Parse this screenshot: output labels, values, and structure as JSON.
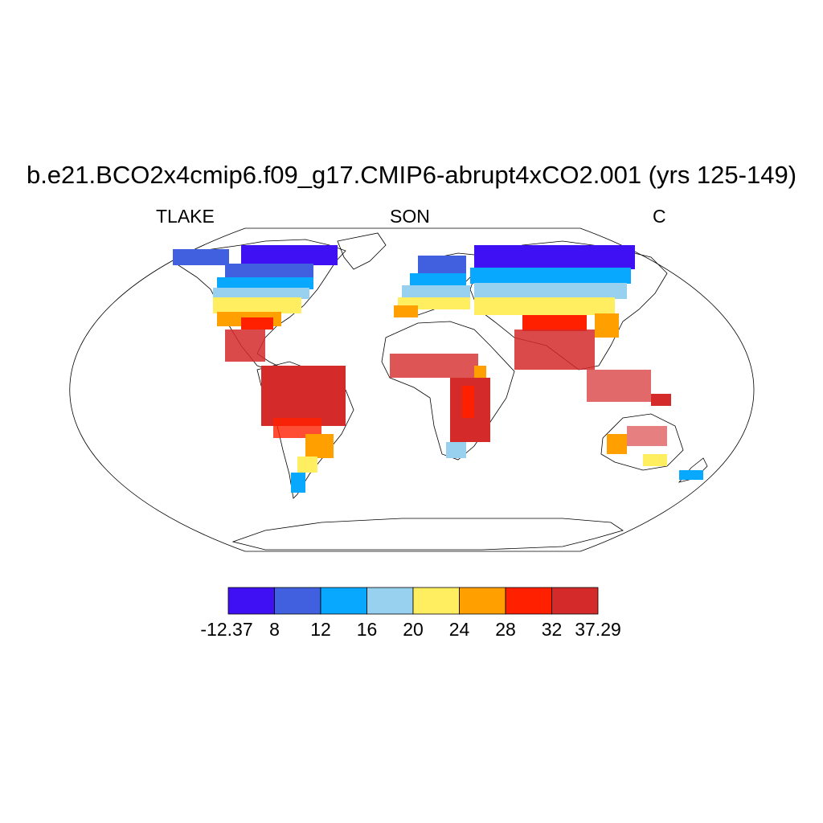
{
  "title": "b.e21.BCO2x4cmip6.f09_g17.CMIP6-abrupt4xCO2.001 (yrs 125-149)",
  "subtitle_left": "TLAKE",
  "subtitle_center": "SON",
  "subtitle_right": "C",
  "colorbar": {
    "colors": [
      "#4010F5",
      "#4060E0",
      "#08A8FF",
      "#98D0F0",
      "#FFEE60",
      "#FFA000",
      "#FF2000",
      "#D52A2A"
    ],
    "tick_labels": [
      "-12.37",
      "8",
      "12",
      "16",
      "20",
      "24",
      "28",
      "32",
      "37.29"
    ]
  }
}
